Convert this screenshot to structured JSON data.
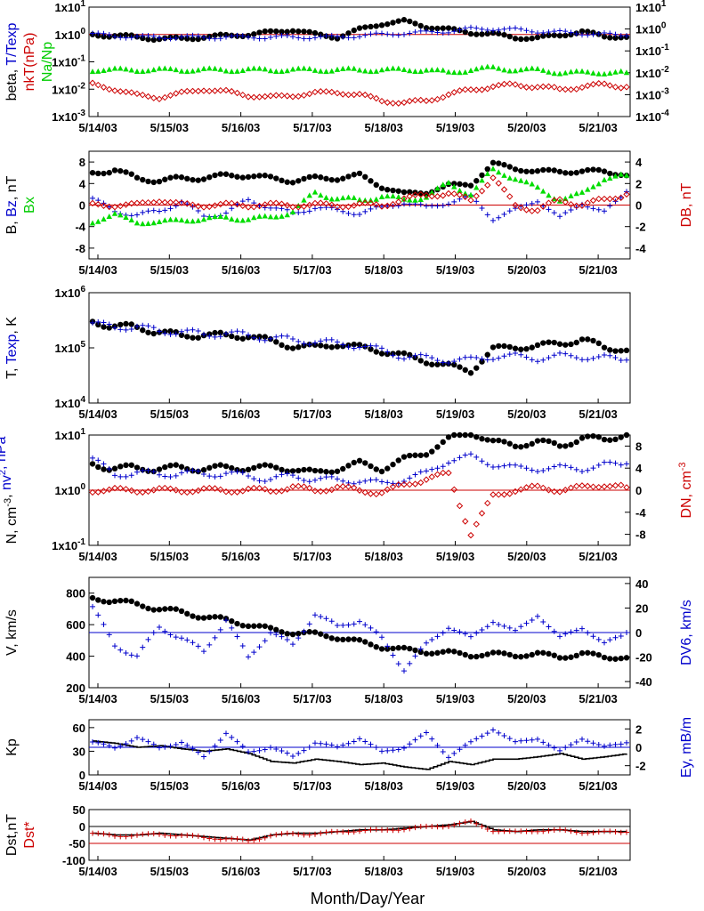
{
  "figure": {
    "xlabel": "Month/Day/Year",
    "date_ticks": [
      "5/14/03",
      "5/15/03",
      "5/16/03",
      "5/17/03",
      "5/18/03",
      "5/19/03",
      "5/20/03",
      "5/21/03"
    ],
    "colors": {
      "black": "#000000",
      "blue": "#0000cc",
      "red": "#cc0000",
      "green": "#00dd00"
    }
  },
  "chart_data": [
    {
      "type": "scatter",
      "panel": "beta",
      "ylabel_left": [
        {
          "text": "beta, ",
          "color": "#000000"
        },
        {
          "text": "T/Texp",
          "color": "#0000cc"
        }
      ],
      "ylabel_left2": [
        {
          "text": "nkT(nPa)",
          "color": "#cc0000"
        }
      ],
      "ylabel_left3": [
        {
          "text": "Na/Np",
          "color": "#00cc00"
        }
      ],
      "y_scale": "log",
      "left_ticks": [
        "1x10-3",
        "1x10-2",
        "1x10-1",
        "1x100",
        "1x101"
      ],
      "right_ticks": [
        "1x10-4",
        "1x10-3",
        "1x10-2",
        "1x10-1",
        "1x100",
        "1x101"
      ],
      "ylim_left": [
        0.001,
        10
      ],
      "ylim_right": [
        0.0001,
        10
      ],
      "ref_line": {
        "axis": "left",
        "value": 1,
        "color": "#cc0000"
      },
      "series": [
        {
          "marker": "dot",
          "color": "#000000",
          "axis": "left",
          "values": [
            1.0,
            0.9,
            0.8,
            0.7,
            0.7,
            0.8,
            0.9,
            1.0,
            1.2,
            1.5,
            1.0,
            0.8,
            1.5,
            2.5,
            3.0,
            2.0,
            1.5,
            1.2,
            1.0,
            0.8,
            0.7,
            1.0,
            1.2,
            0.9,
            0.8
          ]
        },
        {
          "marker": "plus",
          "color": "#0000cc",
          "axis": "left",
          "values": [
            1.0,
            0.9,
            0.8,
            0.8,
            0.8,
            0.8,
            0.8,
            0.8,
            0.8,
            0.8,
            0.8,
            0.8,
            0.9,
            1.0,
            1.1,
            1.2,
            1.3,
            1.6,
            1.6,
            1.5,
            1.3,
            1.2,
            1.1,
            1.0,
            0.9
          ]
        },
        {
          "marker": "triangle",
          "color": "#00dd00",
          "axis": "left",
          "values": [
            0.05,
            0.05,
            0.05,
            0.05,
            0.05,
            0.05,
            0.05,
            0.05,
            0.05,
            0.05,
            0.05,
            0.05,
            0.05,
            0.05,
            0.05,
            0.05,
            0.04,
            0.05,
            0.06,
            0.05,
            0.05,
            0.04,
            0.04,
            0.04,
            0.04
          ]
        },
        {
          "marker": "diamond",
          "color": "#cc0000",
          "axis": "left",
          "values": [
            0.015,
            0.01,
            0.006,
            0.005,
            0.007,
            0.01,
            0.008,
            0.006,
            0.005,
            0.006,
            0.007,
            0.008,
            0.006,
            0.004,
            0.003,
            0.004,
            0.006,
            0.01,
            0.012,
            0.015,
            0.012,
            0.01,
            0.012,
            0.015,
            0.012
          ]
        }
      ]
    },
    {
      "type": "scatter",
      "panel": "B",
      "ylabel_left": [
        {
          "text": "B, ",
          "color": "#000000"
        },
        {
          "text": "Bz",
          "color": "#0000cc"
        },
        {
          "text": ", nT",
          "color": "#000000"
        }
      ],
      "ylabel_left2": [
        {
          "text": "Bx",
          "color": "#00cc00"
        }
      ],
      "ylabel_right": [
        {
          "text": "DB, nT",
          "color": "#cc0000"
        }
      ],
      "y_scale": "linear",
      "left_ticks": [
        "-8",
        "-4",
        "0",
        "4",
        "8"
      ],
      "right_ticks": [
        "-4",
        "-2",
        "0",
        "2",
        "4"
      ],
      "ylim_left": [
        -10,
        10
      ],
      "ylim_right": [
        -5,
        5
      ],
      "ref_line": {
        "axis": "left",
        "value": 0,
        "color": "#cc0000"
      },
      "series": [
        {
          "marker": "dot",
          "color": "#000000",
          "axis": "left",
          "values": [
            6.0,
            6.5,
            5.0,
            4.5,
            5.0,
            5.0,
            5.5,
            5.5,
            5.0,
            4.5,
            5.0,
            5.0,
            5.5,
            3.5,
            2.0,
            2.5,
            3.5,
            4.0,
            7.5,
            7.0,
            6.0,
            6.5,
            6.0,
            6.5,
            5.5
          ]
        },
        {
          "marker": "plus",
          "color": "#0000cc",
          "axis": "left",
          "values": [
            1.0,
            -1.0,
            -2.0,
            -1.0,
            0.5,
            -2.0,
            -1.5,
            1.0,
            -0.5,
            -1.5,
            -0.5,
            -1.0,
            -1.5,
            -0.5,
            0.5,
            -0.5,
            0.5,
            1.5,
            -2.5,
            -1.0,
            1.0,
            -2.5,
            0.5,
            -1.5,
            2.5
          ]
        },
        {
          "marker": "triangle",
          "color": "#00dd00",
          "axis": "left",
          "values": [
            -3.0,
            -2.0,
            -3.0,
            -3.5,
            -2.5,
            -3.0,
            -2.0,
            -3.0,
            -2.0,
            -1.5,
            2.5,
            1.0,
            1.0,
            1.5,
            1.0,
            1.5,
            4.0,
            2.0,
            6.5,
            5.0,
            3.0,
            1.0,
            2.0,
            5.0,
            5.5
          ]
        },
        {
          "marker": "diamond",
          "color": "#cc0000",
          "axis": "right",
          "values": [
            0.0,
            0.0,
            0.0,
            0.5,
            0.0,
            0.0,
            0.0,
            0.0,
            0.0,
            0.0,
            0.0,
            0.0,
            0.0,
            0.0,
            0.5,
            1.0,
            1.0,
            0.5,
            2.5,
            0.0,
            -0.5,
            0.5,
            0.0,
            0.5,
            1.0
          ]
        }
      ]
    },
    {
      "type": "scatter",
      "panel": "T",
      "ylabel_left": [
        {
          "text": "T, ",
          "color": "#000000"
        },
        {
          "text": "Texp",
          "color": "#0000cc"
        },
        {
          "text": ", K",
          "color": "#000000"
        }
      ],
      "y_scale": "log",
      "left_ticks": [
        "1x104",
        "1x105",
        "1x106"
      ],
      "right_ticks": [],
      "ylim_left": [
        10000,
        1000000
      ],
      "series": [
        {
          "marker": "dot",
          "color": "#000000",
          "axis": "left",
          "values": [
            300000,
            250000,
            230000,
            200000,
            160000,
            180000,
            160000,
            170000,
            130000,
            110000,
            100000,
            120000,
            100000,
            90000,
            70000,
            60000,
            45000,
            40000,
            90000,
            110000,
            100000,
            130000,
            130000,
            110000,
            90000
          ]
        },
        {
          "marker": "plus",
          "color": "#0000cc",
          "axis": "left",
          "values": [
            260000,
            250000,
            230000,
            210000,
            190000,
            180000,
            180000,
            170000,
            150000,
            140000,
            130000,
            120000,
            110000,
            90000,
            70000,
            65000,
            60000,
            60000,
            70000,
            70000,
            65000,
            70000,
            70000,
            65000,
            60000
          ]
        }
      ]
    },
    {
      "type": "scatter",
      "panel": "N",
      "ylabel_left": [
        {
          "text": "N, cm",
          "color": "#000000"
        },
        {
          "text": "-3",
          "color": "#000000",
          "sup": true
        },
        {
          "text": ", ",
          "color": "#000000"
        },
        {
          "text": "nv",
          "color": "#0000cc"
        },
        {
          "text": "2",
          "color": "#0000cc",
          "sup": true
        },
        {
          "text": ", nPa",
          "color": "#0000cc"
        }
      ],
      "ylabel_right": [
        {
          "text": "DN, cm",
          "color": "#cc0000"
        },
        {
          "text": "-3",
          "color": "#cc0000",
          "sup": true
        }
      ],
      "y_scale": "log",
      "left_ticks": [
        "1x10-1",
        "1x100",
        "1x101"
      ],
      "right_ticks": [
        "-8",
        "-4",
        "0",
        "4",
        "8"
      ],
      "ylim_left": [
        0.1,
        10
      ],
      "ylim_right": [
        -10,
        10
      ],
      "ref_line": {
        "axis": "left",
        "value": 1,
        "color": "#cc0000"
      },
      "series": [
        {
          "marker": "dot",
          "color": "#000000",
          "axis": "left",
          "values": [
            3.0,
            2.5,
            2.5,
            2.5,
            2.5,
            2.5,
            2.5,
            2.6,
            2.5,
            2.5,
            2.0,
            2.5,
            3.0,
            2.5,
            3.5,
            5.0,
            8.0,
            12.0,
            7.0,
            7.0,
            7.0,
            7.0,
            8.0,
            9.0,
            10.0
          ]
        },
        {
          "marker": "plus",
          "color": "#0000cc",
          "axis": "left",
          "values": [
            3.5,
            2.0,
            2.0,
            2.0,
            2.0,
            2.0,
            2.0,
            1.8,
            1.6,
            1.8,
            1.6,
            1.5,
            1.5,
            1.3,
            1.6,
            2.0,
            3.5,
            4.0,
            3.0,
            2.5,
            2.5,
            2.5,
            2.5,
            2.8,
            3.0
          ]
        },
        {
          "marker": "diamond",
          "color": "#cc0000",
          "axis": "right",
          "values": [
            0.0,
            0.0,
            0.0,
            0.0,
            0.0,
            0.0,
            0.0,
            0.0,
            0.0,
            0.5,
            0.0,
            0.5,
            0.0,
            -0.5,
            1.0,
            2.0,
            3.0,
            -8.0,
            -1.0,
            0.0,
            0.5,
            0.0,
            0.5,
            1.0,
            0.5
          ]
        }
      ]
    },
    {
      "type": "scatter",
      "panel": "V",
      "ylabel_left": [
        {
          "text": "V, km/s",
          "color": "#000000"
        }
      ],
      "ylabel_right": [
        {
          "text": "DV6, km/s",
          "color": "#0000cc"
        }
      ],
      "y_scale": "linear",
      "left_ticks": [
        "200",
        "400",
        "600",
        "800"
      ],
      "right_ticks": [
        "-40",
        "-20",
        "0",
        "20",
        "40"
      ],
      "ylim_left": [
        200,
        900
      ],
      "ylim_right": [
        -45,
        45
      ],
      "ref_line": {
        "axis": "right",
        "value": 0,
        "color": "#0000cc"
      },
      "series": [
        {
          "marker": "dot",
          "color": "#000000",
          "axis": "left",
          "values": [
            770,
            750,
            730,
            700,
            680,
            650,
            630,
            600,
            570,
            550,
            540,
            520,
            490,
            460,
            440,
            430,
            420,
            410,
            410,
            410,
            410,
            400,
            410,
            400,
            390
          ]
        },
        {
          "marker": "plus",
          "color": "#0000cc",
          "axis": "right",
          "values": [
            20,
            -10,
            -20,
            5,
            -5,
            -15,
            10,
            -20,
            0,
            -10,
            15,
            5,
            10,
            -5,
            -30,
            -10,
            5,
            -5,
            10,
            0,
            15,
            -5,
            5,
            -10,
            0
          ]
        }
      ]
    },
    {
      "type": "line",
      "panel": "Kp",
      "ylabel_left": [
        {
          "text": "Kp",
          "color": "#000000"
        }
      ],
      "ylabel_right": [
        {
          "text": "Ey, mB/m",
          "color": "#0000cc"
        }
      ],
      "y_scale": "linear",
      "left_ticks": [
        "0",
        "30",
        "60"
      ],
      "right_ticks": [
        "-2",
        "0",
        "2"
      ],
      "ylim_left": [
        0,
        70
      ],
      "ylim_right": [
        -3,
        3
      ],
      "ref_line": {
        "axis": "right",
        "value": 0,
        "color": "#0000cc"
      },
      "series": [
        {
          "marker": "line",
          "color": "#000000",
          "axis": "left",
          "values": [
            43,
            40,
            35,
            37,
            33,
            30,
            33,
            27,
            17,
            15,
            20,
            17,
            13,
            15,
            10,
            7,
            17,
            13,
            20,
            20,
            23,
            27,
            20,
            23,
            27
          ]
        },
        {
          "marker": "plus",
          "color": "#0000cc",
          "axis": "right",
          "values": [
            0.5,
            0.0,
            1.0,
            0.0,
            0.5,
            -1.0,
            1.5,
            -0.5,
            0.0,
            -1.0,
            0.5,
            0.0,
            1.0,
            -0.5,
            0.0,
            1.5,
            -1.0,
            0.5,
            2.0,
            0.5,
            1.0,
            -0.5,
            1.0,
            0.0,
            0.5
          ]
        }
      ]
    },
    {
      "type": "line",
      "panel": "Dst",
      "ylabel_left": [
        {
          "text": "Dst,nT",
          "color": "#000000"
        }
      ],
      "ylabel_left2": [
        {
          "text": "Dst*",
          "color": "#cc0000"
        }
      ],
      "y_scale": "linear",
      "left_ticks": [
        "-100",
        "-50",
        "0",
        "50"
      ],
      "right_ticks": [],
      "ylim_left": [
        -100,
        50
      ],
      "ref_lines": [
        {
          "axis": "left",
          "value": 0,
          "color": "#000000"
        },
        {
          "axis": "left",
          "value": -50,
          "color": "#cc0000"
        }
      ],
      "series": [
        {
          "marker": "line",
          "color": "#000000",
          "axis": "left",
          "values": [
            -20,
            -25,
            -25,
            -20,
            -25,
            -30,
            -35,
            -40,
            -25,
            -20,
            -20,
            -15,
            -10,
            -10,
            -5,
            0,
            5,
            15,
            -10,
            -15,
            -10,
            -10,
            -15,
            -15,
            -15
          ]
        },
        {
          "marker": "plus",
          "color": "#cc0000",
          "axis": "left",
          "values": [
            -22,
            -27,
            -27,
            -22,
            -27,
            -32,
            -37,
            -42,
            -27,
            -22,
            -22,
            -17,
            -12,
            -12,
            -7,
            -2,
            3,
            13,
            -12,
            -17,
            -12,
            -12,
            -17,
            -17,
            -17
          ]
        }
      ]
    }
  ]
}
